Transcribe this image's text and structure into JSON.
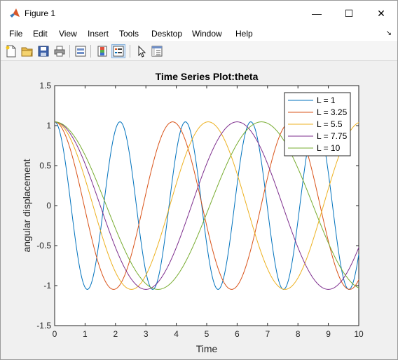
{
  "window": {
    "title": "Figure 1",
    "minimize_glyph": "—",
    "maximize_glyph": "☐",
    "close_glyph": "✕"
  },
  "menu": {
    "items": [
      "File",
      "Edit",
      "View",
      "Insert",
      "Tools",
      "Desktop",
      "Window",
      "Help"
    ],
    "extra_glyph": "↘"
  },
  "toolbar": {
    "icons": [
      "new-figure-icon",
      "open-file-icon",
      "save-icon",
      "print-icon",
      "link-plot-icon",
      "insert-colorbar-icon",
      "insert-legend-icon",
      "edit-plot-icon",
      "property-inspector-icon"
    ]
  },
  "chart_data": {
    "type": "line",
    "title": "Time Series Plot:theta",
    "xlabel": "Time",
    "ylabel": "angular displacement",
    "xlim": [
      0,
      10
    ],
    "ylim": [
      -1.5,
      1.5
    ],
    "xticks": [
      "0",
      "1",
      "2",
      "3",
      "4",
      "5",
      "6",
      "7",
      "8",
      "9",
      "10"
    ],
    "yticks": [
      "-1.5",
      "-1",
      "-0.5",
      "0",
      "0.5",
      "1",
      "1.5"
    ],
    "grid": false,
    "legend_location": "top-right",
    "series": [
      {
        "name": "L = 1",
        "color": "#0072BD",
        "amplitude": 1.047,
        "period": 2.15
      },
      {
        "name": "L = 3.25",
        "color": "#D95319",
        "amplitude": 1.047,
        "period": 3.88
      },
      {
        "name": "L = 5.5",
        "color": "#EDB120",
        "amplitude": 1.047,
        "period": 5.05
      },
      {
        "name": "L = 7.75",
        "color": "#7E2F8E",
        "amplitude": 1.047,
        "period": 6.0
      },
      {
        "name": "L = 10",
        "color": "#77AC30",
        "amplitude": 1.047,
        "period": 6.8
      }
    ]
  }
}
